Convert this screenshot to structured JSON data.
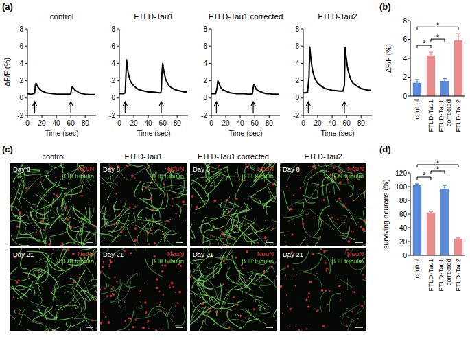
{
  "chart_data": [
    {
      "type": "line",
      "label": "(a)",
      "title": "control",
      "x_label": "Time (sec)",
      "y_label": "ΔF/F (%)",
      "xlim": [
        0,
        95
      ],
      "ylim": [
        -2,
        8
      ],
      "xticks": [
        0,
        20,
        40,
        60,
        80
      ],
      "yticks": [
        -2,
        0,
        2,
        4,
        6,
        8
      ],
      "color": "#000000",
      "x": [
        0,
        3,
        6,
        8,
        9,
        10,
        11,
        12,
        13,
        15,
        17,
        20,
        23,
        26,
        30,
        35,
        40,
        45,
        50,
        55,
        57,
        58,
        59,
        60,
        61,
        62,
        64,
        66,
        69,
        72,
        76,
        80,
        85,
        90,
        94
      ],
      "values": [
        0.5,
        0.45,
        0.45,
        0.5,
        0.5,
        0.6,
        1.5,
        1.7,
        1.5,
        1.2,
        1.0,
        0.8,
        0.7,
        0.6,
        0.55,
        0.5,
        0.45,
        0.45,
        0.45,
        0.45,
        0.45,
        0.45,
        0.45,
        0.5,
        1.0,
        1.3,
        1.1,
        0.9,
        0.75,
        0.6,
        0.5,
        0.45,
        0.4,
        0.4,
        0.4
      ],
      "stimulus_x": [
        10,
        60
      ]
    },
    {
      "type": "line",
      "title": "FTLD-Tau1",
      "x_label": "Time (sec)",
      "xlim": [
        0,
        95
      ],
      "ylim": [
        -2,
        8
      ],
      "xticks": [
        0,
        20,
        40,
        60,
        80
      ],
      "yticks": [
        -2,
        0,
        2,
        4,
        6,
        8
      ],
      "color": "#000000",
      "x": [
        0,
        3,
        6,
        8,
        9,
        10,
        11,
        12,
        13,
        15,
        17,
        20,
        23,
        26,
        30,
        35,
        40,
        45,
        50,
        55,
        57,
        58,
        59,
        60,
        61,
        62,
        64,
        66,
        69,
        72,
        76,
        80,
        85,
        90,
        94
      ],
      "values": [
        0.5,
        0.5,
        0.5,
        0.6,
        2.5,
        4.4,
        3.6,
        3.0,
        2.6,
        2.0,
        1.7,
        1.4,
        1.2,
        1.0,
        0.9,
        0.8,
        0.7,
        0.7,
        0.65,
        0.6,
        0.6,
        0.8,
        3.0,
        4.0,
        3.4,
        2.9,
        2.2,
        1.8,
        1.4,
        1.2,
        1.0,
        0.9,
        0.8,
        0.7,
        0.7
      ],
      "stimulus_x": [
        8,
        58
      ]
    },
    {
      "type": "line",
      "title": "FTLD-Tau1 corrected",
      "x_label": "Time (sec)",
      "xlim": [
        0,
        95
      ],
      "ylim": [
        -2,
        8
      ],
      "xticks": [
        0,
        20,
        40,
        60,
        80
      ],
      "yticks": [
        -2,
        0,
        2,
        4,
        6,
        8
      ],
      "color": "#000000",
      "x": [
        0,
        3,
        6,
        8,
        9,
        10,
        11,
        12,
        13,
        15,
        17,
        20,
        23,
        26,
        30,
        35,
        40,
        45,
        50,
        55,
        57,
        58,
        59,
        60,
        61,
        62,
        64,
        66,
        69,
        72,
        76,
        80,
        85,
        90,
        94
      ],
      "values": [
        0.5,
        0.5,
        0.5,
        1.2,
        2.0,
        1.8,
        1.6,
        1.4,
        1.2,
        1.0,
        0.9,
        0.8,
        0.7,
        0.6,
        0.55,
        0.5,
        0.5,
        0.5,
        0.45,
        0.45,
        0.5,
        1.2,
        1.6,
        1.4,
        1.2,
        1.0,
        0.9,
        0.8,
        0.7,
        0.6,
        0.5,
        0.5,
        0.45,
        0.45,
        0.45
      ],
      "stimulus_x": [
        7,
        58
      ]
    },
    {
      "type": "line",
      "title": "FTLD-Tau2",
      "x_label": "Time (sec)",
      "xlim": [
        0,
        95
      ],
      "ylim": [
        -2,
        8
      ],
      "xticks": [
        0,
        20,
        40,
        60,
        80
      ],
      "yticks": [
        -2,
        0,
        2,
        4,
        6,
        8
      ],
      "color": "#000000",
      "x": [
        0,
        3,
        6,
        8,
        9,
        10,
        11,
        12,
        13,
        15,
        17,
        20,
        23,
        26,
        30,
        35,
        40,
        45,
        50,
        55,
        57,
        58,
        59,
        60,
        61,
        62,
        64,
        66,
        69,
        72,
        76,
        80,
        85,
        90,
        94
      ],
      "values": [
        0.6,
        0.6,
        0.7,
        2.5,
        5.9,
        5.0,
        4.2,
        3.6,
        3.1,
        2.5,
        2.1,
        1.7,
        1.5,
        1.3,
        1.1,
        1.0,
        0.9,
        0.85,
        0.8,
        0.8,
        1.5,
        5.8,
        5.0,
        4.3,
        3.7,
        3.2,
        2.6,
        2.1,
        1.7,
        1.5,
        1.3,
        1.1,
        1.0,
        0.9,
        0.9
      ],
      "stimulus_x": [
        7,
        57
      ]
    },
    {
      "type": "bar",
      "label": "(b)",
      "y_label": "ΔF/F (%)",
      "categories": [
        "control",
        "FTLD-Tau1",
        "FTLD-Tau1 corrected",
        "FTLD-Tau2"
      ],
      "values": [
        1.4,
        4.3,
        1.6,
        5.9
      ],
      "errors": [
        0.35,
        0.35,
        0.25,
        0.7
      ],
      "colors": [
        "#5a8ad8",
        "#e78b8b",
        "#5a8ad8",
        "#e78b8b"
      ],
      "ylim": [
        0,
        8
      ],
      "yticks": [
        0,
        2,
        4,
        6,
        8
      ],
      "significance": [
        {
          "pair": [
            0,
            1
          ],
          "label": "*"
        },
        {
          "pair": [
            1,
            2
          ],
          "label": "*"
        },
        {
          "pair": [
            0,
            3
          ],
          "label": "*"
        }
      ]
    },
    {
      "type": "image",
      "label": "(c)",
      "columns": [
        "control",
        "FTLD-Tau1",
        "FTLD-Tau1 corrected",
        "FTLD-Tau2"
      ],
      "rows": [
        "Day 8",
        "Day 21"
      ],
      "stains": [
        {
          "name": "NeuN",
          "color": "#e03a3a"
        },
        {
          "name": "β III tubulin",
          "color": "#78d65a"
        }
      ]
    },
    {
      "type": "bar",
      "label": "(d)",
      "y_label": "surviving neurons (%)",
      "categories": [
        "control",
        "FTLD-Tau1",
        "FTLD-Tau1 corrected",
        "FTLD-Tau2"
      ],
      "values": [
        102,
        62,
        97,
        24
      ],
      "errors": [
        2,
        1.5,
        5,
        1
      ],
      "colors": [
        "#5a8ad8",
        "#e78b8b",
        "#5a8ad8",
        "#e78b8b"
      ],
      "ylim": [
        0,
        120
      ],
      "yticks": [
        0,
        20,
        40,
        60,
        80,
        100,
        120
      ],
      "significance": [
        {
          "pair": [
            0,
            1
          ],
          "label": "*"
        },
        {
          "pair": [
            1,
            2
          ],
          "label": "*"
        },
        {
          "pair": [
            0,
            3
          ],
          "label": "*"
        }
      ]
    }
  ]
}
